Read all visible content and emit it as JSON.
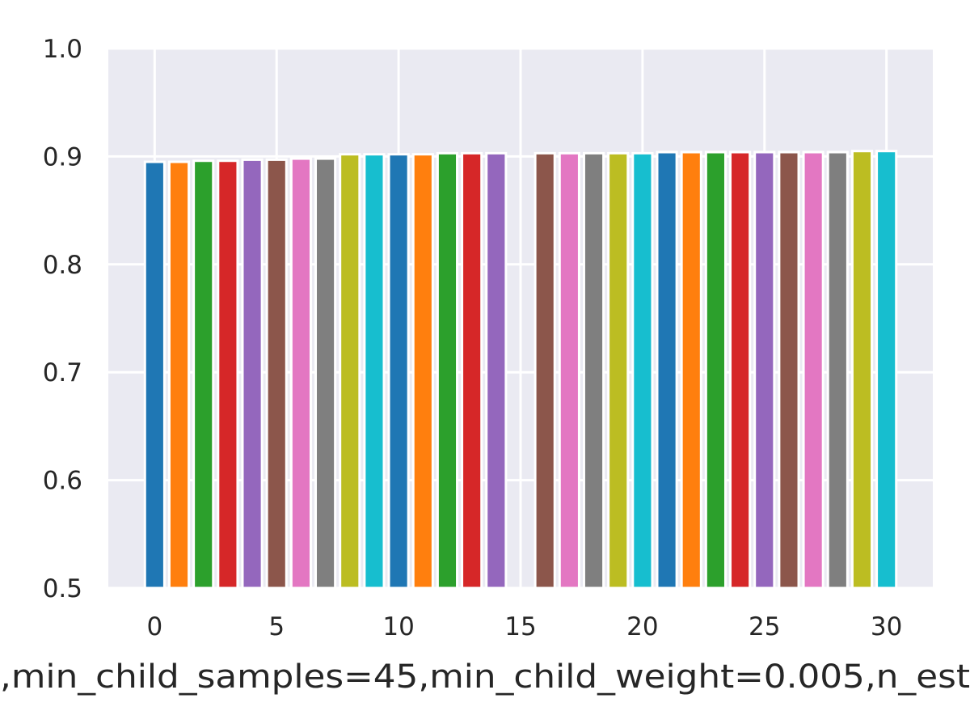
{
  "chart_data": {
    "type": "bar",
    "xlabel": ",min_child_samples=45,min_child_weight=0.005,n_est",
    "ylabel": "",
    "ylim": [
      0.5,
      1.0
    ],
    "xlim": [
      -1.9,
      31.9
    ],
    "grid": true,
    "x_ticks": [
      "0",
      "5",
      "10",
      "15",
      "20",
      "25",
      "30"
    ],
    "y_ticks": [
      "0.5",
      "0.6",
      "0.7",
      "0.8",
      "0.9",
      "1.0"
    ],
    "x": [
      0,
      1,
      2,
      3,
      4,
      5,
      6,
      7,
      8,
      9,
      10,
      11,
      12,
      13,
      14,
      16,
      17,
      18,
      19,
      20,
      21,
      22,
      23,
      24,
      25,
      26,
      27,
      28,
      29,
      30
    ],
    "values": [
      0.895,
      0.895,
      0.896,
      0.896,
      0.897,
      0.897,
      0.898,
      0.898,
      0.902,
      0.902,
      0.902,
      0.902,
      0.903,
      0.903,
      0.903,
      0.903,
      0.903,
      0.903,
      0.903,
      0.903,
      0.904,
      0.904,
      0.904,
      0.904,
      0.904,
      0.904,
      0.904,
      0.904,
      0.905,
      0.905
    ],
    "colors": [
      "#1f77b4",
      "#ff7f0e",
      "#2ca02c",
      "#d62728",
      "#9467bd",
      "#8c564b",
      "#e377c2",
      "#7f7f7f",
      "#bcbd22",
      "#17becf"
    ]
  }
}
